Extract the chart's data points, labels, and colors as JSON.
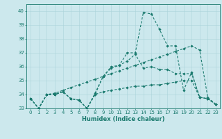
{
  "title": "",
  "xlabel": "Humidex (Indice chaleur)",
  "bg_color": "#cce8ed",
  "line_color": "#1a7a6e",
  "grid_color": "#aad4da",
  "xlim": [
    -0.5,
    23.5
  ],
  "ylim": [
    33,
    40.5
  ],
  "yticks": [
    33,
    34,
    35,
    36,
    37,
    38,
    39,
    40
  ],
  "xticks": [
    0,
    1,
    2,
    3,
    4,
    5,
    6,
    7,
    8,
    9,
    10,
    11,
    12,
    13,
    14,
    15,
    16,
    17,
    18,
    19,
    20,
    21,
    22,
    23
  ],
  "line1_y": [
    33.7,
    33.0,
    34.0,
    34.0,
    34.2,
    33.7,
    33.6,
    33.0,
    34.0,
    34.2,
    34.3,
    34.4,
    34.5,
    34.6,
    34.6,
    34.7,
    34.7,
    34.8,
    34.9,
    35.0,
    35.0,
    33.8,
    33.7,
    33.3
  ],
  "line2_y": [
    33.7,
    33.0,
    34.0,
    34.0,
    34.2,
    33.7,
    33.6,
    33.0,
    34.0,
    35.3,
    35.9,
    36.1,
    36.4,
    36.9,
    35.9,
    36.0,
    35.8,
    35.8,
    35.5,
    35.5,
    35.5,
    33.8,
    33.7,
    33.3
  ],
  "line3_y": [
    33.7,
    33.0,
    34.0,
    34.0,
    34.2,
    33.7,
    33.6,
    33.0,
    34.1,
    35.3,
    36.0,
    36.1,
    37.0,
    37.0,
    39.9,
    39.8,
    38.7,
    37.5,
    37.5,
    34.3,
    35.6,
    33.8,
    33.7,
    33.3
  ],
  "line4_y": [
    33.7,
    33.0,
    34.0,
    34.1,
    34.3,
    34.5,
    34.7,
    34.9,
    35.1,
    35.3,
    35.5,
    35.7,
    35.9,
    36.1,
    36.3,
    36.5,
    36.7,
    36.9,
    37.1,
    37.3,
    37.5,
    37.2,
    33.8,
    33.3
  ],
  "tick_fontsize": 5.0,
  "xlabel_fontsize": 6.0,
  "linewidth": 0.8,
  "markersize": 1.8
}
